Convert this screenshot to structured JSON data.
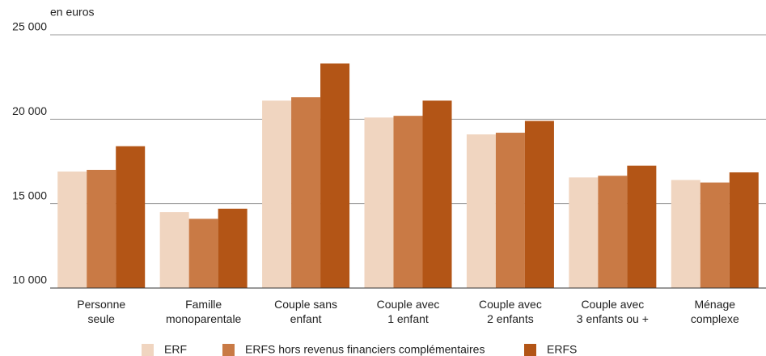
{
  "chart_data": {
    "type": "bar",
    "y_label": "en euros",
    "categories": [
      "Personne\nseule",
      "Famille\nmonoparentale",
      "Couple sans\nenfant",
      "Couple avec\n1 enfant",
      "Couple avec\n2 enfants",
      "Couple avec\n3 enfants ou +",
      "Ménage\ncomplexe"
    ],
    "series": [
      {
        "name": "ERF",
        "color": "#f0d5c0",
        "values": [
          16900,
          14500,
          21100,
          20100,
          19100,
          16550,
          16400
        ]
      },
      {
        "name": "ERFS hors revenus financiers complémentaires",
        "color": "#c97a45",
        "values": [
          17000,
          14100,
          21300,
          20200,
          19200,
          16650,
          16250
        ]
      },
      {
        "name": "ERFS",
        "color": "#b35516",
        "values": [
          18400,
          14700,
          23300,
          21100,
          19900,
          17250,
          16850
        ]
      }
    ],
    "ylim": [
      10000,
      25000
    ],
    "yticks": [
      {
        "value": 10000,
        "label": "10 000"
      },
      {
        "value": 15000,
        "label": "15 000"
      },
      {
        "value": 20000,
        "label": "20 000"
      },
      {
        "value": 25000,
        "label": "25 000"
      }
    ],
    "grid": true
  }
}
